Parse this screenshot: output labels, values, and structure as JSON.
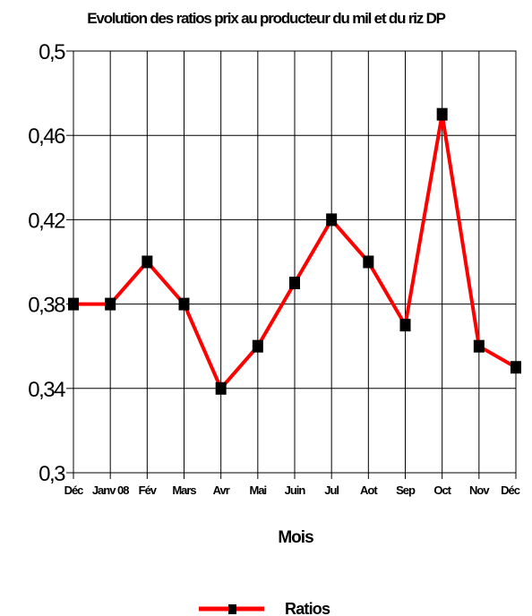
{
  "chart_data": {
    "type": "line",
    "title": "Evolution des ratios prix au producteur du mil et du riz DP",
    "xlabel": "Mois",
    "ylabel": "",
    "categories": [
      "Déc",
      "Janv 08",
      "Fév",
      "Mars",
      "Avr",
      "Mai",
      "Juin",
      "Jul",
      "Aot",
      "Sep",
      "Oct",
      "Nov",
      "Déc"
    ],
    "yticks": [
      "0,3",
      "0,34",
      "0,38",
      "0,42",
      "0,46",
      "0,5"
    ],
    "ylim": [
      0.3,
      0.5
    ],
    "grid": true,
    "legend": "bottom",
    "series": [
      {
        "name": "Ratios",
        "color": "#ff0000",
        "marker_color": "#000000",
        "values": [
          0.38,
          0.38,
          0.4,
          0.38,
          0.34,
          0.36,
          0.39,
          0.42,
          0.4,
          0.37,
          0.47,
          0.36,
          0.35
        ]
      }
    ]
  }
}
